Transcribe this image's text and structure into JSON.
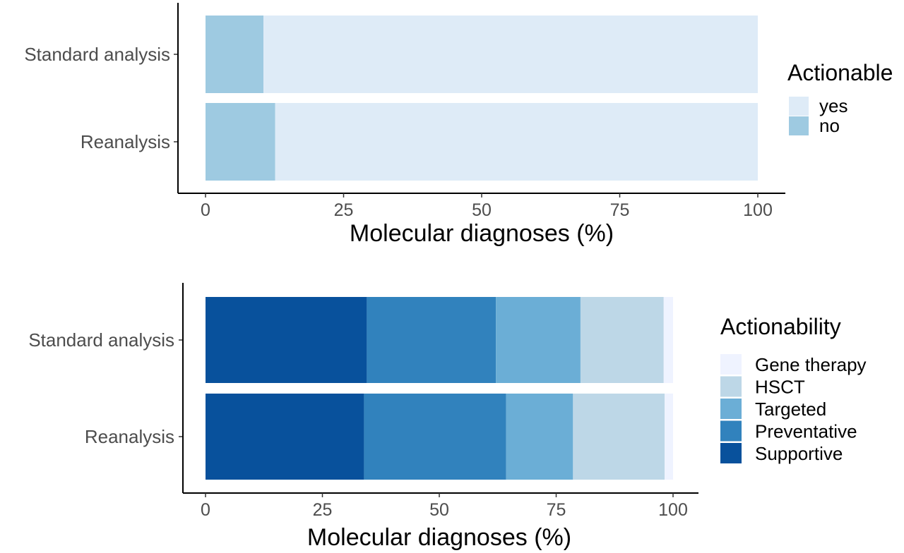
{
  "chart_data": [
    {
      "type": "bar",
      "orientation": "horizontal",
      "stacked": true,
      "categories": [
        "Standard analysis",
        "Reanalysis"
      ],
      "series": [
        {
          "name": "no",
          "values": [
            10.5,
            12.6
          ],
          "color": "#9ecae1"
        },
        {
          "name": "yes",
          "values": [
            89.5,
            87.4
          ],
          "color": "#deebf7"
        }
      ],
      "xlabel": "Molecular diagnoses (%)",
      "xlim": [
        0,
        100
      ],
      "xticks": [
        "0",
        "25",
        "50",
        "75",
        "100"
      ],
      "legend": {
        "title": "Actionable",
        "placement": "right",
        "entries": [
          {
            "label": "yes",
            "color": "#deebf7"
          },
          {
            "label": "no",
            "color": "#9ecae1"
          }
        ]
      },
      "grid": false
    },
    {
      "type": "bar",
      "orientation": "horizontal",
      "stacked": true,
      "categories": [
        "Standard analysis",
        "Reanalysis"
      ],
      "series": [
        {
          "name": "Supportive",
          "values": [
            34.5,
            33.9
          ],
          "color": "#08519c"
        },
        {
          "name": "Preventative",
          "values": [
            27.6,
            30.4
          ],
          "color": "#3182bd"
        },
        {
          "name": "Targeted",
          "values": [
            18.1,
            14.3
          ],
          "color": "#6baed6"
        },
        {
          "name": "HSCT",
          "values": [
            17.8,
            19.6
          ],
          "color": "#bdd7e7"
        },
        {
          "name": "Gene therapy",
          "values": [
            2.0,
            1.8
          ],
          "color": "#eff3ff"
        }
      ],
      "xlabel": "Molecular diagnoses (%)",
      "xlim": [
        0,
        100
      ],
      "xticks": [
        "0",
        "25",
        "50",
        "75",
        "100"
      ],
      "legend": {
        "title": "Actionability",
        "placement": "right",
        "entries": [
          {
            "label": "Gene therapy",
            "color": "#eff3ff"
          },
          {
            "label": "HSCT",
            "color": "#bdd7e7"
          },
          {
            "label": "Targeted",
            "color": "#6baed6"
          },
          {
            "label": "Preventative",
            "color": "#3182bd"
          },
          {
            "label": "Supportive",
            "color": "#08519c"
          }
        ]
      },
      "grid": false
    }
  ]
}
